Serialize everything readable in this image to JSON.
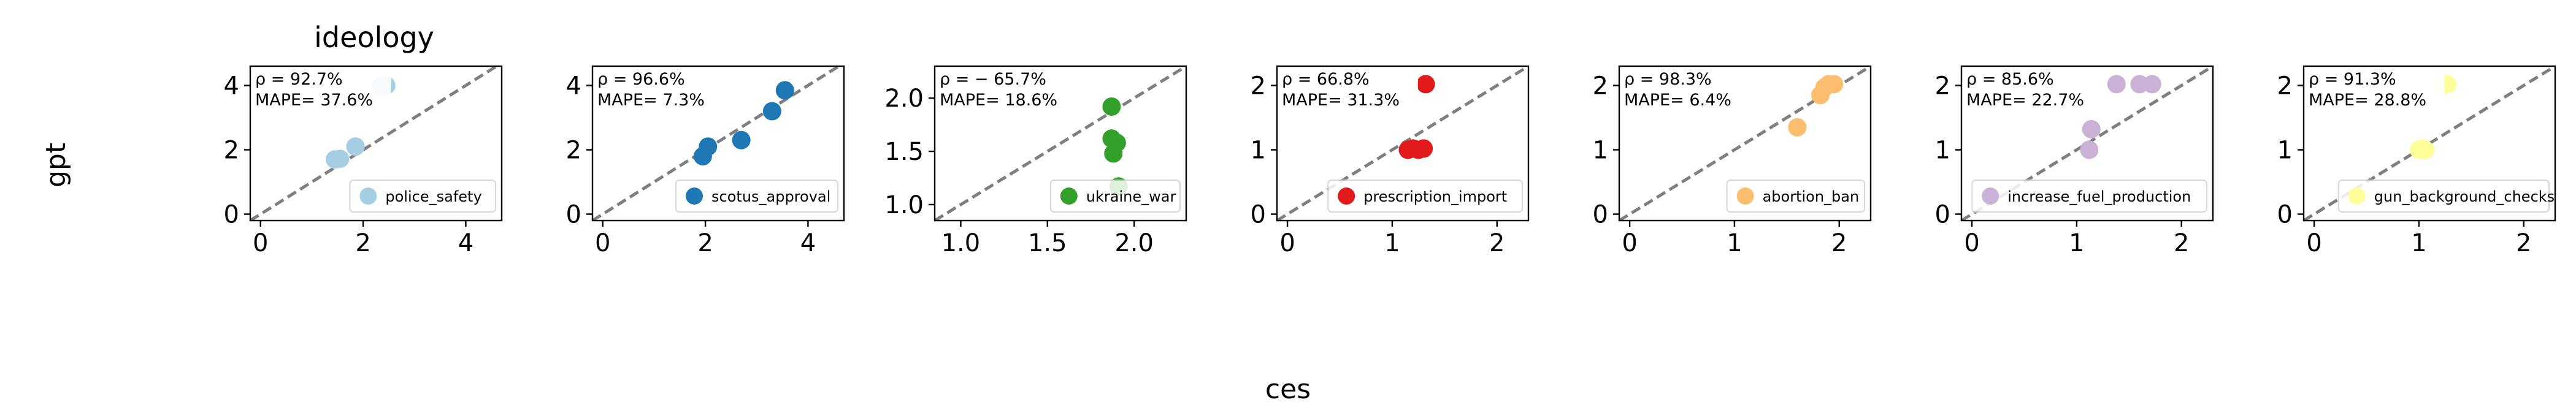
{
  "figure": {
    "title": "ideology",
    "xlabel": "ces",
    "ylabel": "gpt"
  },
  "chart_data": [
    {
      "type": "scatter",
      "series": [
        {
          "name": "police_safety",
          "x": [
            1.45,
            1.55,
            1.85,
            2.35,
            2.45
          ],
          "y": [
            1.7,
            1.72,
            2.1,
            3.95,
            4.0
          ]
        }
      ],
      "color": "#a6cee3",
      "annotation_rho": "ρ = 92.7%",
      "annotation_mape": "MAPE= 37.6%",
      "xlim": [
        -0.2,
        4.7
      ],
      "ylim": [
        -0.2,
        4.6
      ],
      "xticks": [
        0,
        2,
        4
      ],
      "xtick_labels": [
        "0",
        "2",
        "4"
      ],
      "yticks": [
        0,
        2,
        4
      ],
      "ytick_labels": [
        "0",
        "2",
        "4"
      ],
      "diagonal": true,
      "grid": false,
      "legend_position": "lower right"
    },
    {
      "type": "scatter",
      "series": [
        {
          "name": "scotus_approval",
          "x": [
            1.95,
            2.05,
            2.7,
            3.3,
            3.55
          ],
          "y": [
            1.8,
            2.1,
            2.3,
            3.2,
            3.85
          ]
        }
      ],
      "color": "#1f78b4",
      "annotation_rho": "ρ = 96.6%",
      "annotation_mape": "MAPE= 7.3%",
      "xlim": [
        -0.2,
        4.7
      ],
      "ylim": [
        -0.2,
        4.6
      ],
      "xticks": [
        0,
        2,
        4
      ],
      "xtick_labels": [
        "0",
        "2",
        "4"
      ],
      "yticks": [
        0,
        2,
        4
      ],
      "ytick_labels": [
        "0",
        "2",
        "4"
      ],
      "diagonal": true,
      "grid": false,
      "legend_position": "lower right"
    },
    {
      "type": "scatter",
      "series": [
        {
          "name": "ukraine_war",
          "x": [
            1.87,
            1.87,
            1.88,
            1.9,
            1.91
          ],
          "y": [
            1.92,
            1.62,
            1.48,
            1.58,
            1.17
          ]
        }
      ],
      "color": "#33a02c",
      "annotation_rho": "ρ = − 65.7%",
      "annotation_mape": "MAPE= 18.6%",
      "xlim": [
        0.85,
        2.3
      ],
      "ylim": [
        0.85,
        2.3
      ],
      "xticks": [
        1.0,
        1.5,
        2.0
      ],
      "xtick_labels": [
        "1.0",
        "1.5",
        "2.0"
      ],
      "yticks": [
        1.0,
        1.5,
        2.0
      ],
      "ytick_labels": [
        "1.0",
        "1.5",
        "2.0"
      ],
      "diagonal": true,
      "grid": false,
      "legend_position": "lower right"
    },
    {
      "type": "scatter",
      "series": [
        {
          "name": "prescription_import",
          "x": [
            1.15,
            1.2,
            1.25,
            1.3,
            1.32
          ],
          "y": [
            1.0,
            1.02,
            1.0,
            1.02,
            2.02
          ]
        }
      ],
      "color": "#e31a1c",
      "annotation_rho": "ρ = 66.8%",
      "annotation_mape": "MAPE= 31.3%",
      "xlim": [
        -0.1,
        2.3
      ],
      "ylim": [
        -0.1,
        2.3
      ],
      "xticks": [
        0,
        1,
        2
      ],
      "xtick_labels": [
        "0",
        "1",
        "2"
      ],
      "yticks": [
        0,
        1,
        2
      ],
      "ytick_labels": [
        "0",
        "1",
        "2"
      ],
      "diagonal": true,
      "grid": false,
      "legend_position": "lower right"
    },
    {
      "type": "scatter",
      "series": [
        {
          "name": "abortion_ban",
          "x": [
            1.6,
            1.82,
            1.86,
            1.9,
            1.95
          ],
          "y": [
            1.35,
            1.85,
            1.97,
            2.02,
            2.02
          ]
        }
      ],
      "color": "#fdbf6f",
      "annotation_rho": "ρ = 98.3%",
      "annotation_mape": "MAPE= 6.4%",
      "xlim": [
        -0.1,
        2.3
      ],
      "ylim": [
        -0.1,
        2.3
      ],
      "xticks": [
        0,
        1,
        2
      ],
      "xtick_labels": [
        "0",
        "1",
        "2"
      ],
      "yticks": [
        0,
        1,
        2
      ],
      "ytick_labels": [
        "0",
        "1",
        "2"
      ],
      "diagonal": true,
      "grid": false,
      "legend_position": "lower right"
    },
    {
      "type": "scatter",
      "series": [
        {
          "name": "increase_fuel_production",
          "x": [
            1.12,
            1.14,
            1.38,
            1.6,
            1.72
          ],
          "y": [
            1.0,
            1.32,
            2.02,
            2.02,
            2.02
          ]
        }
      ],
      "color": "#cab2d6",
      "annotation_rho": "ρ = 85.6%",
      "annotation_mape": "MAPE= 22.7%",
      "xlim": [
        -0.1,
        2.3
      ],
      "ylim": [
        -0.1,
        2.3
      ],
      "xticks": [
        0,
        1,
        2
      ],
      "xtick_labels": [
        "0",
        "1",
        "2"
      ],
      "yticks": [
        0,
        1,
        2
      ],
      "ytick_labels": [
        "0",
        "1",
        "2"
      ],
      "diagonal": true,
      "grid": false,
      "legend_position": "lower right"
    },
    {
      "type": "scatter",
      "series": [
        {
          "name": "gun_background_checks",
          "x": [
            1.0,
            1.03,
            1.06,
            1.22,
            1.27
          ],
          "y": [
            1.0,
            1.02,
            1.0,
            2.0,
            2.02
          ]
        }
      ],
      "color": "#ffff99",
      "annotation_rho": "ρ = 91.3%",
      "annotation_mape": "MAPE= 28.8%",
      "xlim": [
        -0.1,
        2.3
      ],
      "ylim": [
        -0.1,
        2.3
      ],
      "xticks": [
        0,
        1,
        2
      ],
      "xtick_labels": [
        "0",
        "1",
        "2"
      ],
      "yticks": [
        0,
        1,
        2
      ],
      "ytick_labels": [
        "0",
        "1",
        "2"
      ],
      "diagonal": true,
      "grid": false,
      "legend_position": "lower right"
    }
  ]
}
